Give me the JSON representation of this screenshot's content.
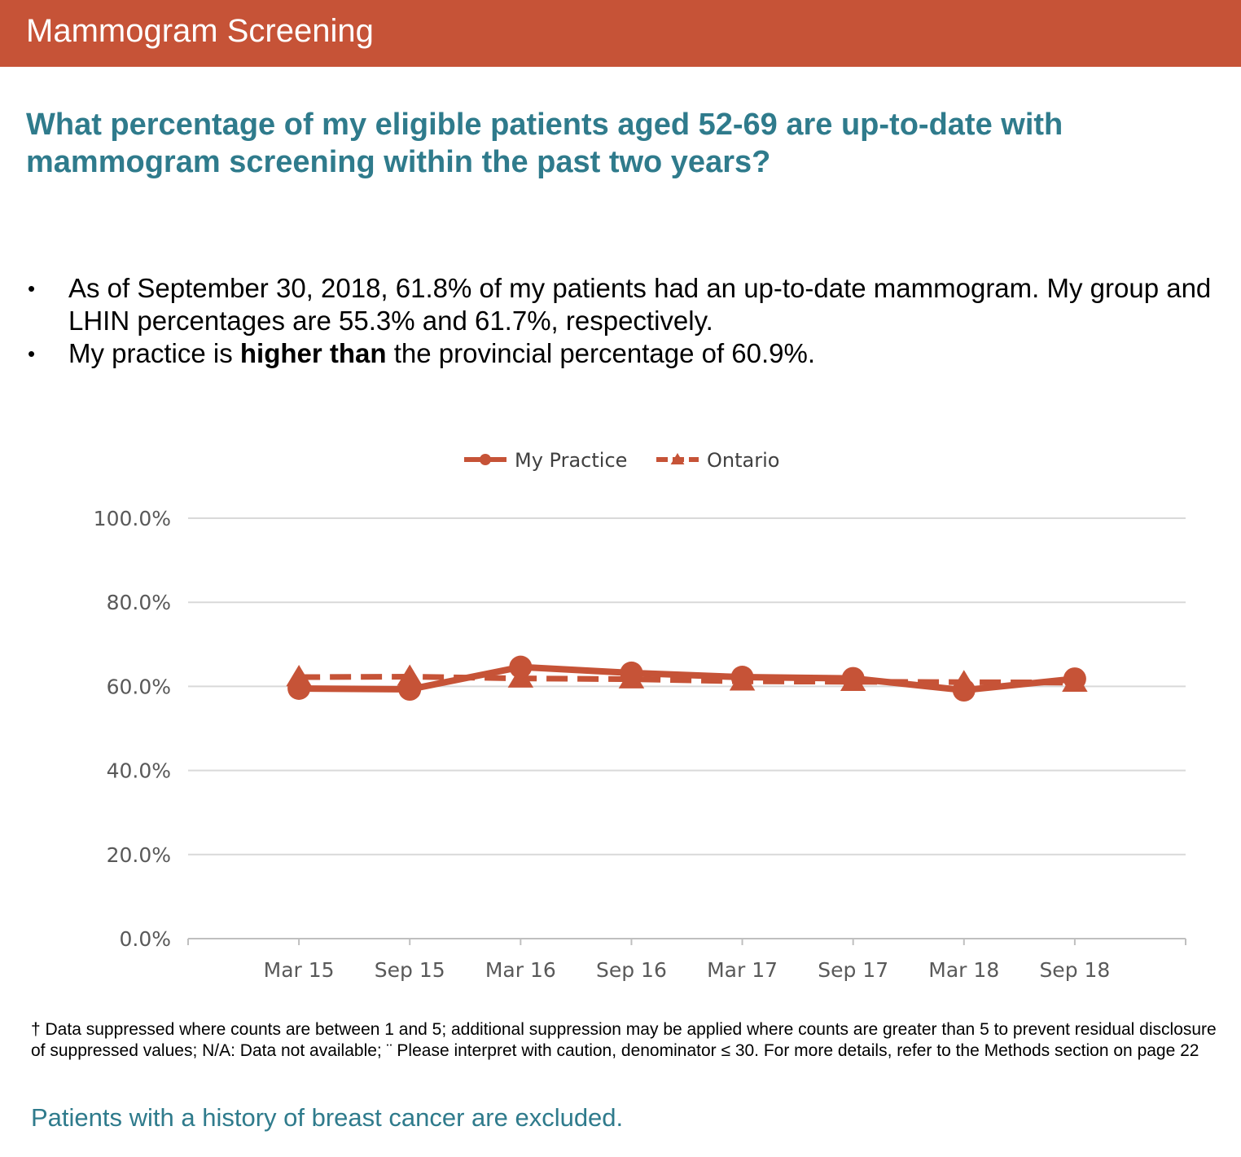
{
  "header": {
    "title": "Mammogram Screening"
  },
  "question": "What percentage of my eligible patients aged 52-69 are up-to-date with mammogram screening within the past two years?",
  "bullets": [
    {
      "pre": "As of September 30, 2018, 61.8% of my patients had an up-to-date mammogram. My group and LHIN percentages are 55.3% and 61.7%, respectively.",
      "bold": "",
      "post": ""
    },
    {
      "pre": "My practice is ",
      "bold": "higher than",
      "post": " the provincial percentage of 60.9%."
    }
  ],
  "chart_data": {
    "type": "line",
    "title": "",
    "xlabel": "",
    "ylabel": "",
    "categories": [
      "Mar 15",
      "Sep 15",
      "Mar 16",
      "Sep 16",
      "Mar 17",
      "Sep 17",
      "Mar 18",
      "Sep 18"
    ],
    "yticks": [
      "0.0%",
      "20.0%",
      "40.0%",
      "60.0%",
      "80.0%",
      "100.0%"
    ],
    "ylim": [
      0,
      100
    ],
    "grid": true,
    "legend_position": "top-center",
    "series": [
      {
        "name": "My Practice",
        "style": "solid",
        "marker": "circle",
        "color": "#c65337",
        "values": [
          59.5,
          59.3,
          64.6,
          63.2,
          62.2,
          61.9,
          59.1,
          61.8
        ]
      },
      {
        "name": "Ontario",
        "style": "dashed",
        "marker": "triangle",
        "color": "#c65337",
        "values": [
          62.2,
          62.3,
          61.9,
          61.7,
          61.2,
          61.1,
          61.0,
          60.9
        ]
      }
    ]
  },
  "footnote": "† Data suppressed where counts are between 1 and 5; additional suppression may be applied where counts are greater than 5 to prevent residual disclosure of suppressed values; N/A: Data not available; ¨ Please interpret with caution, denominator ≤ 30. For more details, refer to the Methods section on page 22",
  "exclusion_note": "Patients with a history of breast cancer are excluded."
}
